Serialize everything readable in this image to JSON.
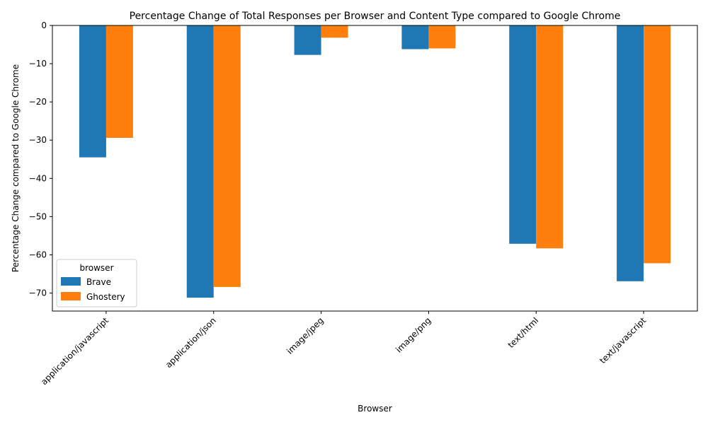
{
  "chart_data": {
    "type": "bar",
    "title": "Percentage Change of Total Responses per Browser and Content Type compared to Google Chrome",
    "xlabel": "Browser",
    "ylabel": "Percentage Change compared to Google Chrome",
    "categories": [
      "application/javascript",
      "application/json",
      "image/jpeg",
      "image/png",
      "text/html",
      "text/javascript"
    ],
    "series": [
      {
        "name": "Brave",
        "color": "#1f77b4",
        "values": [
          -34.5,
          -71.2,
          -7.7,
          -6.2,
          -57.1,
          -66.9
        ]
      },
      {
        "name": "Ghostery",
        "color": "#ff7f0e",
        "values": [
          -29.4,
          -68.4,
          -3.2,
          -6.0,
          -58.3,
          -62.2
        ]
      }
    ],
    "ylim": [
      -74.7,
      0
    ],
    "yticks": [
      0,
      -10,
      -20,
      -30,
      -40,
      -50,
      -60,
      -70
    ],
    "ytick_labels": [
      "0",
      "−10",
      "−20",
      "−30",
      "−40",
      "−50",
      "−60",
      "−70"
    ],
    "grid": false,
    "legend": {
      "title": "browser",
      "position": "bottom-left"
    }
  }
}
